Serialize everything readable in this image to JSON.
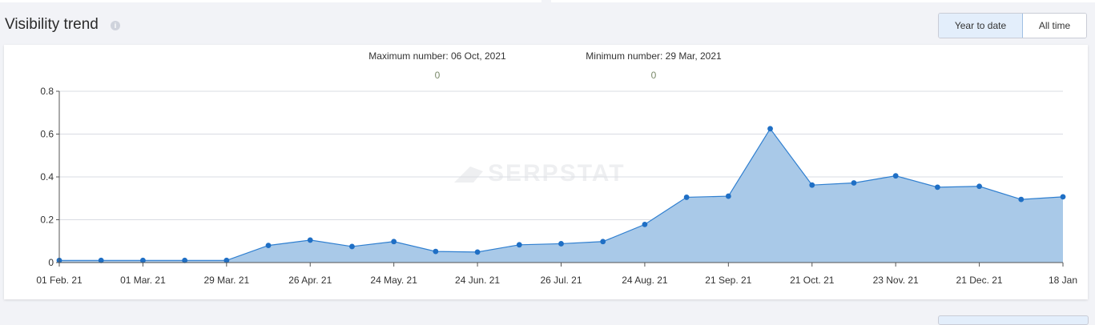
{
  "header": {
    "title": "Visibility trend",
    "info_icon": "info-icon",
    "toggle": {
      "year_to_date": "Year to date",
      "all_time": "All time",
      "active": "year_to_date"
    }
  },
  "summary": {
    "max_label": "Maximum number: 06 Oct, 2021",
    "max_value": "0",
    "min_label": "Minimum number: 29 Mar, 2021",
    "min_value": "0"
  },
  "watermark": "SERPSTAT",
  "colors": {
    "line": "#2f7fd0",
    "fill": "#a9c9e8",
    "marker": "#1f6fc5",
    "accent_button": "#e3eefb"
  },
  "chart_data": {
    "type": "area",
    "title": "Visibility trend",
    "xlabel": "",
    "ylabel": "",
    "ylim": [
      0,
      0.8
    ],
    "yticks": [
      0,
      0.2,
      0.4,
      0.6,
      0.8
    ],
    "ytick_labels": [
      "0",
      "0.2",
      "0.4",
      "0.6",
      "0.8"
    ],
    "xtick_labels": [
      "01 Feb. 21",
      "01 Mar. 21",
      "29 Mar. 21",
      "26 Apr. 21",
      "24 May. 21",
      "24 Jun. 21",
      "26 Jul. 21",
      "24 Aug. 21",
      "21 Sep. 21",
      "21 Oct. 21",
      "23 Nov. 21",
      "21 Dec. 21",
      "18 Jan"
    ],
    "grid": true,
    "series": [
      {
        "values": [
          0.01,
          0.01,
          0.01,
          0.01,
          0.01,
          0.08,
          0.105,
          0.075,
          0.098,
          0.052,
          0.049,
          0.083,
          0.088,
          0.098,
          0.178,
          0.305,
          0.31,
          0.625,
          0.362,
          0.372,
          0.405,
          0.352,
          0.356,
          0.295,
          0.307
        ]
      }
    ]
  }
}
